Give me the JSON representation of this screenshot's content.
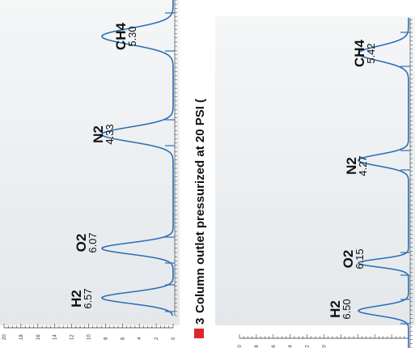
{
  "chart_data": [
    {
      "type": "line",
      "title": "",
      "xlabel": "",
      "ylabel": "",
      "orientation": "rotated-90-ccw",
      "ylim": [
        0,
        20
      ],
      "yticks": [
        "0",
        "2",
        "4",
        "6",
        "8",
        "10",
        "12",
        "14",
        "16",
        "18",
        "20"
      ],
      "colors": {
        "trace": "#2a6fb5",
        "panel": "#eceff1",
        "axis": "#333333"
      },
      "peaks": [
        {
          "name": "H2",
          "time": "6.57",
          "t": 6.57
        },
        {
          "name": "O2",
          "time": "6.07",
          "t": 6.07
        },
        {
          "name": "N2",
          "time": "4.33",
          "t": 4.33
        },
        {
          "name": "CH4",
          "time": "5.30",
          "t": 5.3
        }
      ]
    },
    {
      "type": "line",
      "title": "",
      "xlabel": "",
      "ylabel": "",
      "orientation": "rotated-90-ccw",
      "ylim": [
        0,
        20
      ],
      "yticks": [
        "0",
        "2",
        "4",
        "6",
        "8",
        "10",
        "12",
        "14",
        "16",
        "18",
        "20"
      ],
      "colors": {
        "trace": "#2a6fb5",
        "panel": "#eceff1",
        "axis": "#333333"
      },
      "peaks": [
        {
          "name": "H2",
          "time": "6.50",
          "t": 6.5
        },
        {
          "name": "O2",
          "time": "6.15",
          "t": 6.15
        },
        {
          "name": "N2",
          "time": "4.27",
          "t": 4.27
        },
        {
          "name": "CH4",
          "time": "5.42",
          "t": 5.42
        }
      ]
    }
  ],
  "section_label": {
    "number": "3",
    "text": "Column outlet pressurized at 20 PSI ("
  },
  "colors": {
    "accent": "#e0262c"
  }
}
